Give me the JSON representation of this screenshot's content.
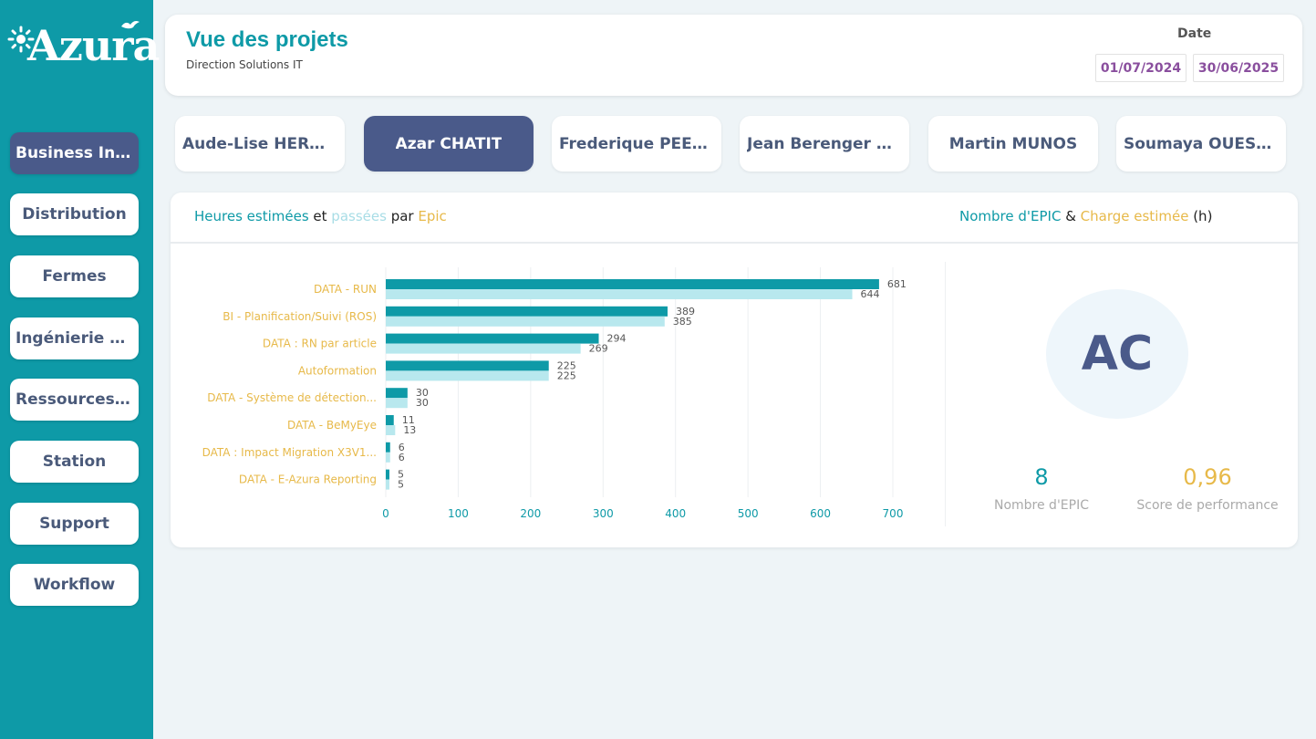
{
  "brand": {
    "logo_text": "Azura"
  },
  "sidebar": {
    "items": [
      {
        "label": "Business Intel...",
        "active": true
      },
      {
        "label": "Distribution",
        "active": false
      },
      {
        "label": "Fermes",
        "active": false
      },
      {
        "label": "Ingénierie dé...",
        "active": false
      },
      {
        "label": "Ressources H...",
        "active": false
      },
      {
        "label": "Station",
        "active": false
      },
      {
        "label": "Support",
        "active": false
      },
      {
        "label": "Workflow",
        "active": false
      }
    ]
  },
  "header": {
    "title": "Vue des projets",
    "subtitle": "Direction Solutions IT",
    "date_label": "Date",
    "date_start": "01/07/2024",
    "date_end": "30/06/2025"
  },
  "people": [
    {
      "label": "Aude-Lise HERNA...",
      "active": false
    },
    {
      "label": "Azar CHATIT",
      "active": true
    },
    {
      "label": "Frederique PEERS",
      "active": false
    },
    {
      "label": "Jean Berenger MA...",
      "active": false
    },
    {
      "label": "Martin MUNOS",
      "active": false
    },
    {
      "label": "Soumaya OUESLATI",
      "active": false
    }
  ],
  "chart_title": {
    "part1": "Heures estimées",
    "part2": " et ",
    "part3": "passées",
    "part4": " par ",
    "part5": "Epic"
  },
  "kpi_title": {
    "part1": "Nombre d'EPIC",
    "part2": " & ",
    "part3": "Charge estimée",
    "part4": " (h)"
  },
  "chart_data": {
    "type": "bar",
    "orientation": "horizontal",
    "categories": [
      "DATA - RUN",
      "BI - Planification/Suivi (ROS)",
      "DATA : RN par article",
      "Autoformation",
      "DATA - Système de détection...",
      "DATA - BeMyEye",
      "DATA : Impact Migration X3V1...",
      "DATA - E-Azura Reporting"
    ],
    "series": [
      {
        "values": [
          681,
          389,
          294,
          225,
          30,
          11,
          6,
          5
        ],
        "color": "#0e9aa7"
      },
      {
        "values": [
          644,
          385,
          269,
          225,
          30,
          13,
          6,
          5
        ],
        "color": "#b8e8ee"
      }
    ],
    "xlim": [
      0,
      700
    ],
    "xticks": [
      "0",
      "100",
      "200",
      "300",
      "400",
      "500",
      "600",
      "700"
    ],
    "grid": true,
    "legend": "none"
  },
  "profile": {
    "initials": "AC",
    "epic_count": "8",
    "epic_label": "Nombre d'EPIC",
    "score": "0,96",
    "score_label": "Score de performance"
  },
  "colors": {
    "teal": "#0e9aa7",
    "light_teal": "#b8e8ee",
    "gold": "#e7b949",
    "navy": "#4a5a8a",
    "date_purple": "#8a4f9e"
  }
}
